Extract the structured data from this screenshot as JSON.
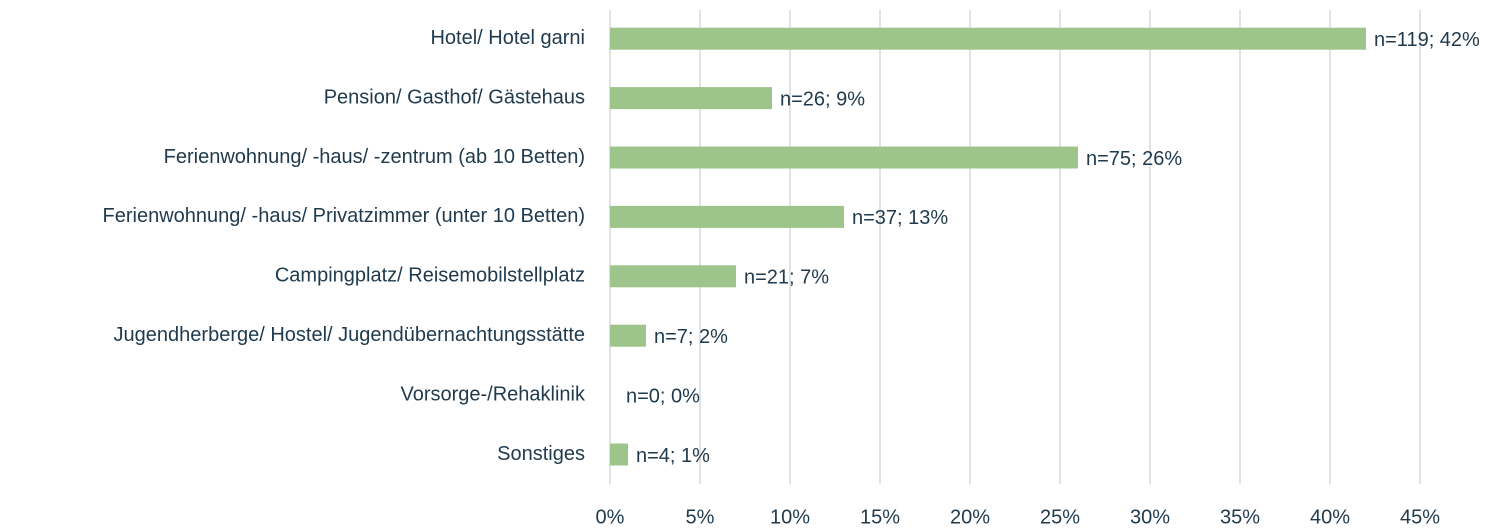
{
  "chart_data": {
    "type": "bar",
    "orientation": "horizontal",
    "categories": [
      "Hotel/ Hotel garni",
      "Pension/ Gasthof/ Gästehaus",
      "Ferienwohnung/ -haus/ -zentrum (ab 10 Betten)",
      "Ferienwohnung/ -haus/ Privatzimmer (unter 10 Betten)",
      "Campingplatz/ Reisemobilstellplatz",
      "Jugendherberge/ Hostel/ Jugendübernachtungsstätte",
      "Vorsorge-/Rehaklinik",
      "Sonstiges"
    ],
    "values": [
      42,
      9,
      26,
      13,
      7,
      2,
      0,
      1
    ],
    "value_labels": [
      "n=119; 42%",
      "n=26; 9%",
      "n=75; 26%",
      "n=37; 13%",
      "n=21; 7%",
      "n=7; 2%",
      "n=0; 0%",
      "n=4; 1%"
    ],
    "color": "#9dc48a",
    "xlim": [
      0,
      45
    ],
    "xticks": [
      {
        "value": 0,
        "label": "0%"
      },
      {
        "value": 5,
        "label": "5%"
      },
      {
        "value": 10,
        "label": "10%"
      },
      {
        "value": 15,
        "label": "15%"
      },
      {
        "value": 20,
        "label": "20%"
      },
      {
        "value": 25,
        "label": "25%"
      },
      {
        "value": 30,
        "label": "30%"
      },
      {
        "value": 35,
        "label": "35%"
      },
      {
        "value": 40,
        "label": "40%"
      },
      {
        "value": 45,
        "label": "45%"
      }
    ],
    "grid": true
  }
}
